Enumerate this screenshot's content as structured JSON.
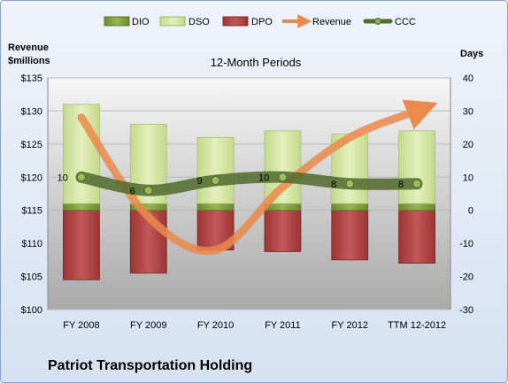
{
  "chart_data": {
    "type": "bar",
    "title": "12-Month Periods",
    "categories": [
      "FY 2008",
      "FY 2009",
      "FY 2010",
      "FY 2011",
      "FY 2012",
      "TTM 12-2012"
    ],
    "left_axis": {
      "label": "Revenue $millions",
      "label_lines": [
        "Revenue",
        "$millions"
      ],
      "ylim": [
        100,
        135
      ],
      "ticks": [
        "$100",
        "$105",
        "$110",
        "$115",
        "$120",
        "$125",
        "$130",
        "$135"
      ],
      "tick_values": [
        100,
        105,
        110,
        115,
        120,
        125,
        130,
        135
      ]
    },
    "right_axis": {
      "label": "Days",
      "ylim": [
        -30,
        40
      ],
      "ticks": [
        "-30",
        "-20",
        "-10",
        "0",
        "10",
        "20",
        "30",
        "40"
      ],
      "tick_values": [
        -30,
        -20,
        -10,
        0,
        10,
        20,
        30,
        40
      ]
    },
    "grid": true,
    "legend_position": "top",
    "series": [
      {
        "name": "DIO",
        "axis": "right",
        "kind": "stacked-bar",
        "color": "#7f9e3c",
        "values": [
          2,
          2,
          2,
          2,
          2,
          2
        ]
      },
      {
        "name": "DSO",
        "axis": "right",
        "kind": "stacked-bar",
        "color": "#d9e8a5",
        "values": [
          30,
          24,
          20,
          22,
          21,
          22
        ]
      },
      {
        "name": "DPO",
        "axis": "right",
        "kind": "stacked-bar-negative",
        "color": "#b64444",
        "values": [
          -21,
          -19,
          -12,
          -12.5,
          -15,
          -16
        ]
      },
      {
        "name": "Revenue",
        "axis": "left",
        "kind": "line",
        "color": "#e9874a",
        "values": [
          129,
          114,
          109,
          118.5,
          126,
          130
        ]
      },
      {
        "name": "CCC",
        "axis": "right",
        "kind": "line",
        "color": "#4f6a2e",
        "values": [
          10,
          6,
          9,
          10,
          8,
          8
        ]
      }
    ],
    "ccc_labels": [
      "10",
      "6",
      "9",
      "10",
      "8",
      "8"
    ]
  },
  "company_name": "Patriot Transportation Holding"
}
